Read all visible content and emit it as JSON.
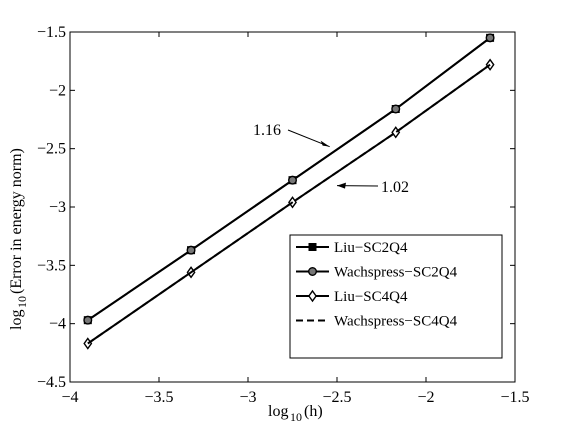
{
  "chart_data": {
    "type": "line",
    "xlabel_base": "log",
    "xlabel_sub": "10",
    "xlabel_rest": "(h)",
    "ylabel_base": "log",
    "ylabel_sub": "10",
    "ylabel_rest": "(Error in energy norm)",
    "xlim": [
      -4,
      -1.5
    ],
    "ylim": [
      -4.5,
      -1.5
    ],
    "xticks": [
      -4,
      -3.5,
      -3,
      -2.5,
      -2,
      -1.5
    ],
    "yticks": [
      -4.5,
      -4,
      -3.5,
      -3,
      -2.5,
      -2,
      -1.5
    ],
    "xtick_labels": [
      "−4",
      "−3.5",
      "−3",
      "−2.5",
      "−2",
      "−1.5"
    ],
    "ytick_labels": [
      "−4.5",
      "−4",
      "−3.5",
      "−3",
      "−2.5",
      "−2",
      "−1.5"
    ],
    "grid": false,
    "legend_position": "bottom-right",
    "x": [
      -3.9,
      -3.32,
      -2.75,
      -2.17,
      -1.64
    ],
    "series": [
      {
        "name": "Liu−SC2Q4",
        "marker": "square",
        "dash": "solid",
        "values": [
          -3.97,
          -3.37,
          -2.77,
          -2.16,
          -1.55
        ]
      },
      {
        "name": "Wachspress−SC2Q4",
        "marker": "circle",
        "dash": "solid",
        "values": [
          -3.97,
          -3.37,
          -2.77,
          -2.16,
          -1.55
        ]
      },
      {
        "name": "Liu−SC4Q4",
        "marker": "diamond",
        "dash": "solid",
        "values": [
          -4.17,
          -3.56,
          -2.96,
          -2.36,
          -1.78
        ]
      },
      {
        "name": "Wachspress−SC4Q4",
        "marker": "none",
        "dash": "dashed",
        "values": [
          -4.17,
          -3.56,
          -2.96,
          -2.36,
          -1.78
        ]
      }
    ],
    "annotations": [
      {
        "text": "1.16",
        "target_x": -2.53,
        "target_y": -2.5
      },
      {
        "text": "1.02",
        "target_x": -2.5,
        "target_y": -2.8
      }
    ]
  }
}
